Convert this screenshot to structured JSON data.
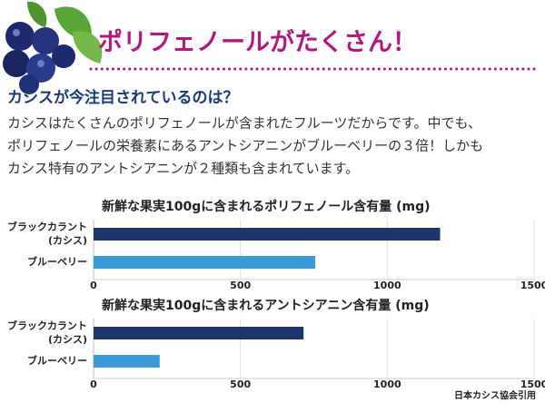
{
  "header": {
    "title": "ポリフェノールがたくさん！"
  },
  "section": {
    "heading": "カシスが今注目されているのは？",
    "paragraph": [
      "カシスはたくさんのポリフェノールが含まれたフルーツだからです。中でも、",
      "ポリフェノールの栄養素にあるアントシアニンがブルーベリーの３倍！しかも",
      "カシス特有のアントシアニンが２種類も含まれています。"
    ]
  },
  "chart_data": [
    {
      "type": "hbar",
      "title": "新鮮な果実100gに含まれるポリフェノール含有量 (mg)",
      "categories": [
        [
          "ブラックカラント",
          "(カシス)"
        ],
        [
          "ブルーベリー"
        ]
      ],
      "values": [
        1180,
        755
      ],
      "colors": [
        "#1f3468",
        "#3c9ad9"
      ],
      "xlim": [
        0,
        1500
      ],
      "xticks": [
        0,
        500,
        1000,
        1500
      ],
      "grid": true
    },
    {
      "type": "hbar",
      "title": "新鮮な果実100gに含まれるアントシアニン含有量 (mg)",
      "categories": [
        [
          "ブラックカラント",
          "(カシス)"
        ],
        [
          "ブルーベリー"
        ]
      ],
      "values": [
        715,
        225
      ],
      "colors": [
        "#1f3468",
        "#3c9ad9"
      ],
      "xlim": [
        0,
        1500
      ],
      "xticks": [
        0,
        500,
        1000,
        1500
      ],
      "grid": true
    }
  ],
  "source": "日本カシス協会引用"
}
